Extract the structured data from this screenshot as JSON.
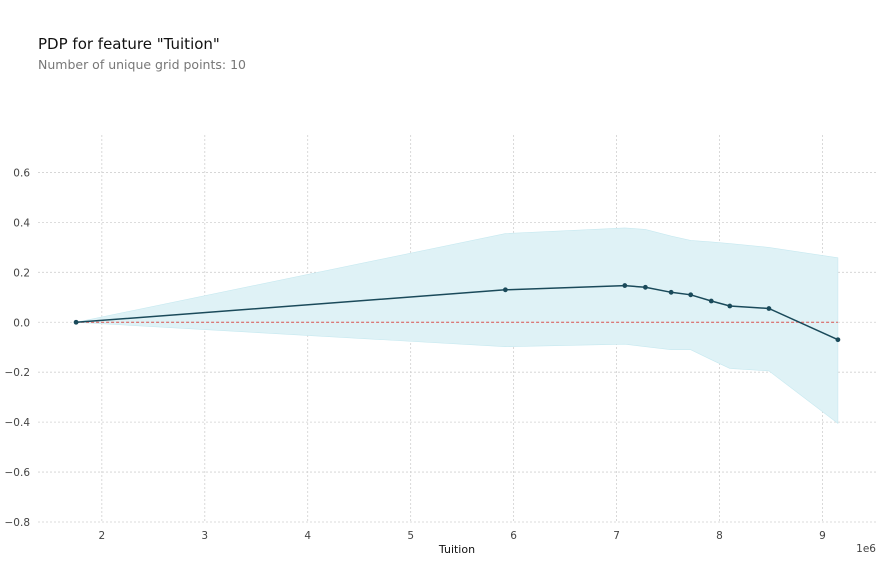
{
  "header": {
    "title": "PDP for feature \"Tuition\"",
    "subtitle": "Number of unique grid points: 10"
  },
  "chart_data": {
    "type": "line",
    "title": "PDP for feature \"Tuition\"",
    "subtitle": "Number of unique grid points: 10",
    "xlabel": "Tuition",
    "ylabel": "",
    "x_scale_label": "1e6",
    "xlim": [
      1.38,
      9.52
    ],
    "ylim": [
      -0.8,
      0.75
    ],
    "xticks": [
      2,
      3,
      4,
      5,
      6,
      7,
      8,
      9
    ],
    "yticks": [
      -0.8,
      -0.6,
      -0.4,
      -0.2,
      0.0,
      0.2,
      0.4,
      0.6
    ],
    "xtick_labels": [
      "2",
      "3",
      "4",
      "5",
      "6",
      "7",
      "8",
      "9"
    ],
    "ytick_labels": [
      "−0.8",
      "−0.6",
      "−0.4",
      "−0.2",
      "0.0",
      "0.2",
      "0.4",
      "0.6"
    ],
    "grid": true,
    "reference_line_y": 0.0,
    "series": [
      {
        "x": [
          1.75,
          5.92,
          7.08,
          7.28,
          7.53,
          7.72,
          7.92,
          8.1,
          8.48,
          9.15
        ],
        "y": [
          0.0,
          0.13,
          0.147,
          0.14,
          0.12,
          0.11,
          0.085,
          0.065,
          0.055,
          -0.07
        ],
        "upper": [
          0.0,
          0.355,
          0.378,
          0.372,
          0.345,
          0.328,
          0.322,
          0.315,
          0.3,
          0.258
        ],
        "lower": [
          0.0,
          -0.098,
          -0.088,
          -0.098,
          -0.11,
          -0.11,
          -0.15,
          -0.185,
          -0.195,
          -0.405
        ]
      }
    ],
    "colors": {
      "line": "#1a4a5a",
      "band": "#dff2f6",
      "band_edge": "#c7e9f0",
      "reference": "#d9534f",
      "grid": "#d0d0d0"
    }
  }
}
